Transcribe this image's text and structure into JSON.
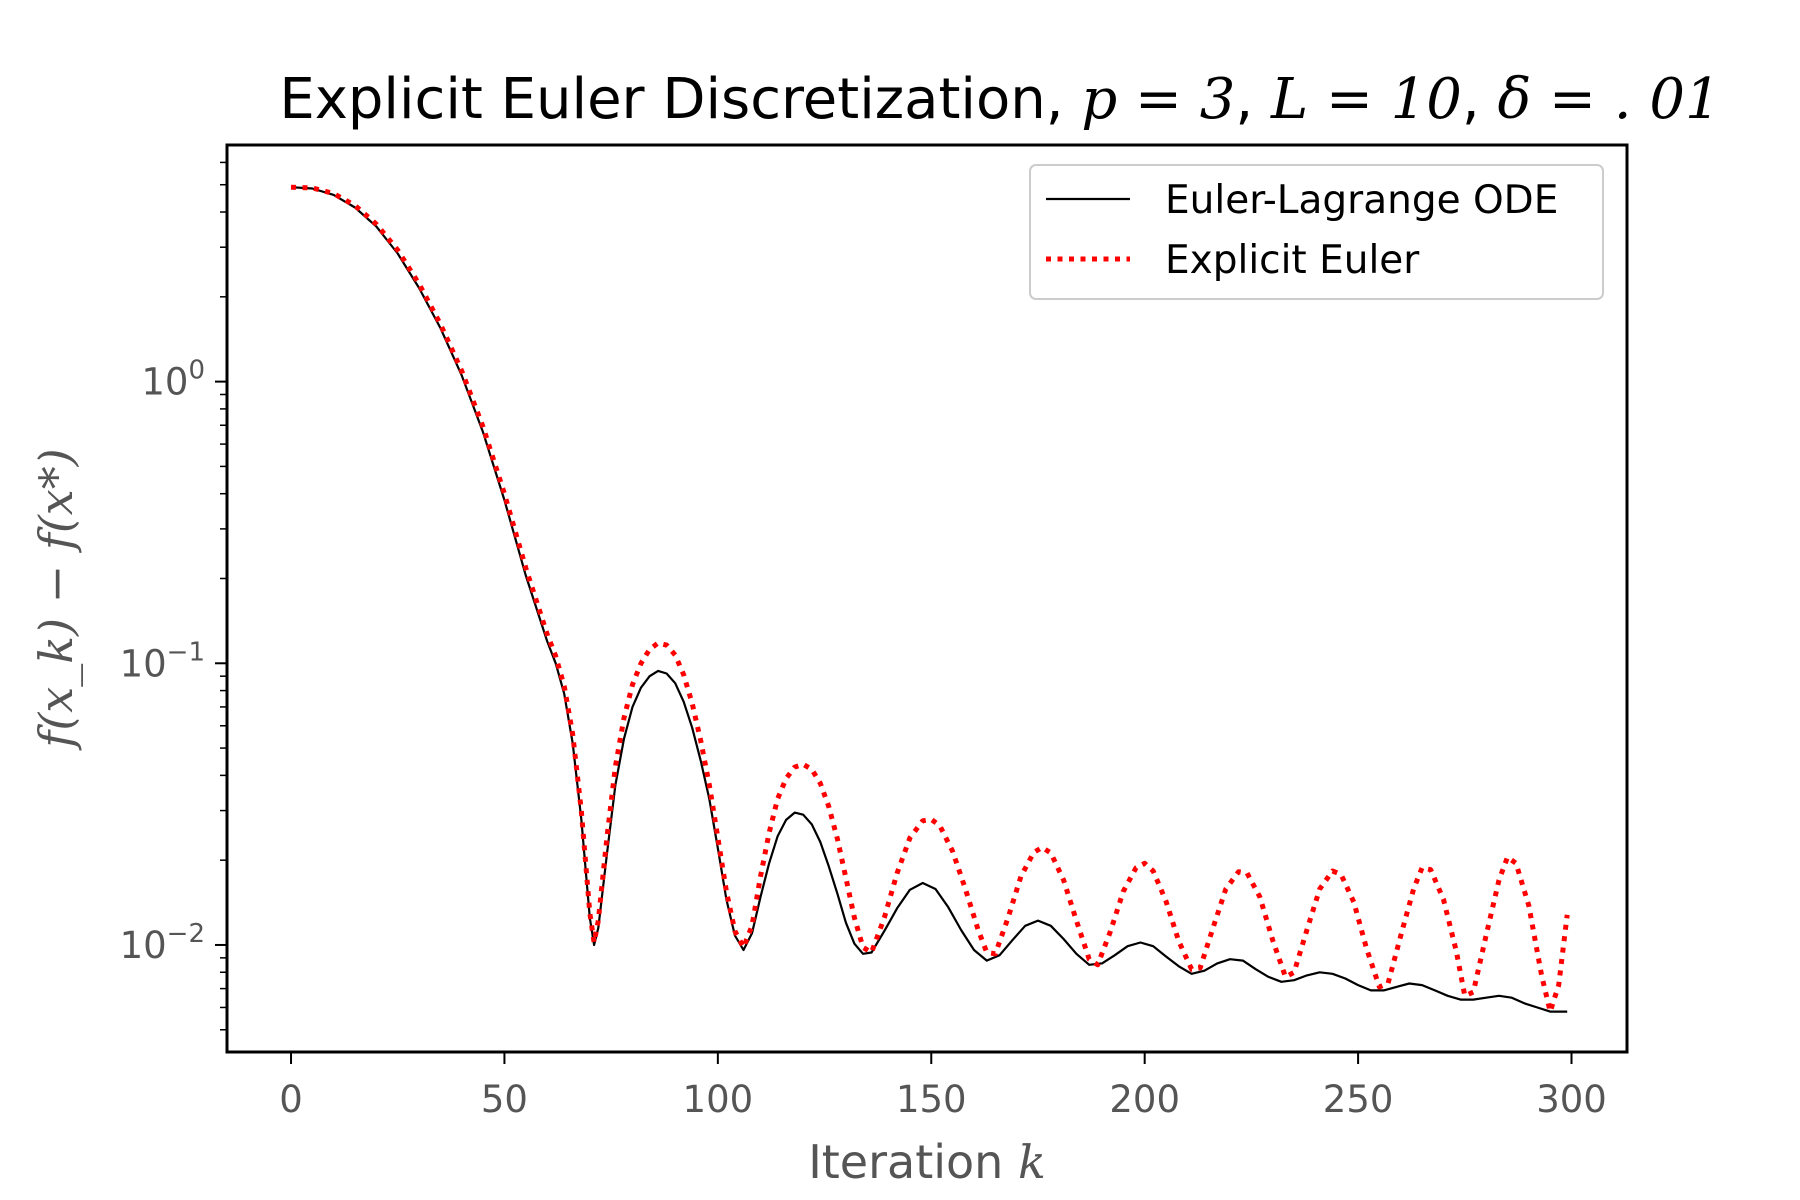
{
  "chart_data": {
    "type": "line",
    "title": "Explicit Euler Discretization, p = 3, L = 10, δ = .01",
    "title_parts": {
      "prefix": "Explicit Euler Discretization, ",
      "p": "p = 3",
      "sep1": ", ",
      "L": "L = 10",
      "sep2": ", ",
      "delta": "δ = . 01"
    },
    "xlabel": "Iteration k",
    "xlabel_parts": {
      "text": "Iteration ",
      "var": "k"
    },
    "ylabel": "f(x_k) − f(x*)",
    "xlim": [
      -15,
      313
    ],
    "ylim_log10": [
      -2.38,
      0.84
    ],
    "yscale": "log",
    "grid": false,
    "legend_position": "top-right",
    "x_ticks": [
      {
        "value": 0,
        "label": "0"
      },
      {
        "value": 50,
        "label": "50"
      },
      {
        "value": 100,
        "label": "100"
      },
      {
        "value": 150,
        "label": "150"
      },
      {
        "value": 200,
        "label": "200"
      },
      {
        "value": 250,
        "label": "250"
      },
      {
        "value": 300,
        "label": "300"
      }
    ],
    "y_ticks": [
      {
        "value": 1,
        "label_base": "10",
        "label_exp": "0"
      },
      {
        "value": 0.1,
        "label_base": "10",
        "label_exp": "−1"
      },
      {
        "value": 0.01,
        "label_base": "10",
        "label_exp": "−2"
      }
    ],
    "series": [
      {
        "name": "Euler-Lagrange ODE",
        "color": "#000000",
        "style": "solid",
        "points": [
          [
            0,
            4.9
          ],
          [
            5,
            4.85
          ],
          [
            10,
            4.6
          ],
          [
            15,
            4.15
          ],
          [
            20,
            3.55
          ],
          [
            25,
            2.85
          ],
          [
            30,
            2.15
          ],
          [
            35,
            1.55
          ],
          [
            40,
            1.05
          ],
          [
            45,
            0.66
          ],
          [
            50,
            0.38
          ],
          [
            55,
            0.205
          ],
          [
            60,
            0.12
          ],
          [
            62,
            0.1
          ],
          [
            64,
            0.078
          ],
          [
            66,
            0.052
          ],
          [
            68,
            0.028
          ],
          [
            70,
            0.0125
          ],
          [
            71,
            0.01
          ],
          [
            72,
            0.0115
          ],
          [
            74,
            0.021
          ],
          [
            76,
            0.037
          ],
          [
            78,
            0.054
          ],
          [
            80,
            0.07
          ],
          [
            82,
            0.082
          ],
          [
            84,
            0.09
          ],
          [
            86,
            0.094
          ],
          [
            88,
            0.092
          ],
          [
            90,
            0.085
          ],
          [
            92,
            0.073
          ],
          [
            94,
            0.059
          ],
          [
            96,
            0.045
          ],
          [
            98,
            0.033
          ],
          [
            100,
            0.022
          ],
          [
            102,
            0.0145
          ],
          [
            104,
            0.0108
          ],
          [
            106,
            0.0096
          ],
          [
            108,
            0.011
          ],
          [
            110,
            0.0148
          ],
          [
            112,
            0.0195
          ],
          [
            114,
            0.0243
          ],
          [
            116,
            0.0278
          ],
          [
            118,
            0.0295
          ],
          [
            120,
            0.029
          ],
          [
            122,
            0.0268
          ],
          [
            124,
            0.0232
          ],
          [
            126,
            0.019
          ],
          [
            128,
            0.0152
          ],
          [
            130,
            0.012
          ],
          [
            132,
            0.0101
          ],
          [
            134,
            0.0093
          ],
          [
            136,
            0.0094
          ],
          [
            139,
            0.0112
          ],
          [
            142,
            0.0135
          ],
          [
            145,
            0.0157
          ],
          [
            148,
            0.0166
          ],
          [
            151,
            0.0158
          ],
          [
            154,
            0.0136
          ],
          [
            157,
            0.0113
          ],
          [
            160,
            0.0096
          ],
          [
            163,
            0.0088
          ],
          [
            166,
            0.0092
          ],
          [
            169,
            0.0104
          ],
          [
            172,
            0.0117
          ],
          [
            175,
            0.0122
          ],
          [
            178,
            0.0117
          ],
          [
            181,
            0.0105
          ],
          [
            184,
            0.0093
          ],
          [
            187,
            0.0085
          ],
          [
            190,
            0.0086
          ],
          [
            193,
            0.0092
          ],
          [
            196,
            0.0099
          ],
          [
            199,
            0.0102
          ],
          [
            202,
            0.0099
          ],
          [
            205,
            0.0091
          ],
          [
            208,
            0.0084
          ],
          [
            211,
            0.0079
          ],
          [
            214,
            0.0081
          ],
          [
            217,
            0.0086
          ],
          [
            220,
            0.0089
          ],
          [
            223,
            0.0088
          ],
          [
            226,
            0.0082
          ],
          [
            229,
            0.0077
          ],
          [
            232,
            0.0074
          ],
          [
            235,
            0.0075
          ],
          [
            238,
            0.0078
          ],
          [
            241,
            0.008
          ],
          [
            244,
            0.0079
          ],
          [
            247,
            0.0076
          ],
          [
            250,
            0.0072
          ],
          [
            253,
            0.0069
          ],
          [
            256,
            0.0069
          ],
          [
            259,
            0.0071
          ],
          [
            262,
            0.0073
          ],
          [
            265,
            0.0072
          ],
          [
            268,
            0.0069
          ],
          [
            271,
            0.0066
          ],
          [
            274,
            0.0064
          ],
          [
            277,
            0.0064
          ],
          [
            280,
            0.0065
          ],
          [
            283,
            0.0066
          ],
          [
            286,
            0.0065
          ],
          [
            289,
            0.0062
          ],
          [
            292,
            0.006
          ],
          [
            295,
            0.0058
          ],
          [
            299,
            0.0058
          ]
        ]
      },
      {
        "name": "Explicit Euler",
        "color": "#ff0000",
        "style": "dotted",
        "points": [
          [
            0,
            4.9
          ],
          [
            5,
            4.87
          ],
          [
            10,
            4.65
          ],
          [
            15,
            4.22
          ],
          [
            20,
            3.62
          ],
          [
            25,
            2.93
          ],
          [
            30,
            2.22
          ],
          [
            35,
            1.6
          ],
          [
            40,
            1.09
          ],
          [
            45,
            0.69
          ],
          [
            50,
            0.4
          ],
          [
            55,
            0.218
          ],
          [
            60,
            0.127
          ],
          [
            62,
            0.106
          ],
          [
            64,
            0.083
          ],
          [
            66,
            0.056
          ],
          [
            68,
            0.03
          ],
          [
            70,
            0.013
          ],
          [
            71,
            0.0102
          ],
          [
            72,
            0.0122
          ],
          [
            74,
            0.024
          ],
          [
            76,
            0.043
          ],
          [
            78,
            0.064
          ],
          [
            80,
            0.084
          ],
          [
            82,
            0.1
          ],
          [
            84,
            0.112
          ],
          [
            86,
            0.118
          ],
          [
            88,
            0.116
          ],
          [
            90,
            0.107
          ],
          [
            92,
            0.091
          ],
          [
            94,
            0.072
          ],
          [
            96,
            0.053
          ],
          [
            98,
            0.037
          ],
          [
            100,
            0.024
          ],
          [
            102,
            0.0155
          ],
          [
            104,
            0.0112
          ],
          [
            106,
            0.0098
          ],
          [
            108,
            0.0117
          ],
          [
            110,
            0.0175
          ],
          [
            112,
            0.025
          ],
          [
            114,
            0.033
          ],
          [
            116,
            0.039
          ],
          [
            118,
            0.0428
          ],
          [
            120,
            0.0438
          ],
          [
            122,
            0.042
          ],
          [
            124,
            0.0375
          ],
          [
            126,
            0.031
          ],
          [
            128,
            0.0238
          ],
          [
            130,
            0.0173
          ],
          [
            132,
            0.0125
          ],
          [
            134,
            0.0098
          ],
          [
            136,
            0.0094
          ],
          [
            139,
            0.0125
          ],
          [
            142,
            0.018
          ],
          [
            145,
            0.024
          ],
          [
            148,
            0.0276
          ],
          [
            150,
            0.0279
          ],
          [
            152,
            0.0265
          ],
          [
            155,
            0.0215
          ],
          [
            158,
            0.0158
          ],
          [
            161,
            0.0113
          ],
          [
            163,
            0.0094
          ],
          [
            165,
            0.0093
          ],
          [
            168,
            0.0125
          ],
          [
            171,
            0.0175
          ],
          [
            174,
            0.0213
          ],
          [
            176,
            0.0222
          ],
          [
            178,
            0.0212
          ],
          [
            181,
            0.017
          ],
          [
            184,
            0.0122
          ],
          [
            187,
            0.0089
          ],
          [
            189,
            0.0085
          ],
          [
            192,
            0.0112
          ],
          [
            195,
            0.0155
          ],
          [
            198,
            0.0188
          ],
          [
            200,
            0.0195
          ],
          [
            202,
            0.0183
          ],
          [
            205,
            0.0143
          ],
          [
            208,
            0.0103
          ],
          [
            211,
            0.0082
          ],
          [
            213,
            0.0083
          ],
          [
            216,
            0.0115
          ],
          [
            219,
            0.0158
          ],
          [
            222,
            0.0182
          ],
          [
            224,
            0.018
          ],
          [
            227,
            0.0148
          ],
          [
            230,
            0.0104
          ],
          [
            233,
            0.0077
          ],
          [
            235,
            0.008
          ],
          [
            238,
            0.0113
          ],
          [
            241,
            0.0158
          ],
          [
            244,
            0.0183
          ],
          [
            246,
            0.0178
          ],
          [
            249,
            0.0142
          ],
          [
            252,
            0.0097
          ],
          [
            255,
            0.0071
          ],
          [
            257,
            0.0073
          ],
          [
            260,
            0.0108
          ],
          [
            263,
            0.0158
          ],
          [
            265,
            0.0188
          ],
          [
            267,
            0.0185
          ],
          [
            270,
            0.0145
          ],
          [
            273,
            0.0095
          ],
          [
            275,
            0.0066
          ],
          [
            277,
            0.0068
          ],
          [
            280,
            0.0108
          ],
          [
            283,
            0.017
          ],
          [
            285,
            0.0205
          ],
          [
            287,
            0.0195
          ],
          [
            290,
            0.0138
          ],
          [
            293,
            0.0078
          ],
          [
            295,
            0.0058
          ],
          [
            297,
            0.0072
          ],
          [
            299,
            0.0128
          ]
        ]
      }
    ]
  }
}
